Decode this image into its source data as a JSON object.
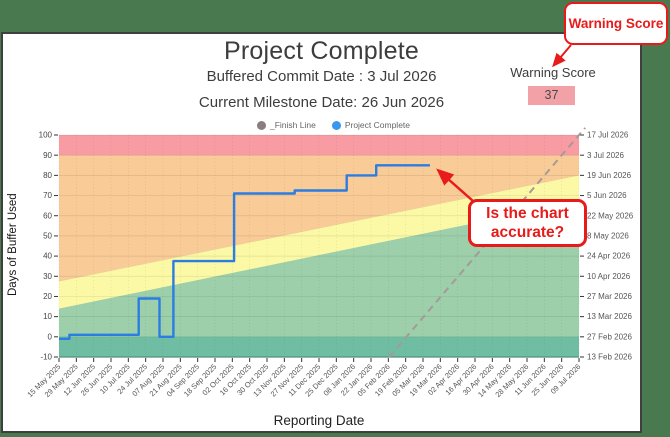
{
  "page": {
    "background_color": "#497a4f"
  },
  "header": {
    "title": "Project Complete",
    "subtitle1": "Buffered Commit Date : 3 Jul 2026",
    "subtitle2": "Current Milestone Date: 26 Jun 2026",
    "warning_score_label": "Warning Score",
    "warning_score_value": "37",
    "warning_score_bg": "#f2a1a7"
  },
  "legend": [
    {
      "label": "_Finish Line",
      "color": "#8b7e7e"
    },
    {
      "label": "Project Complete",
      "color": "#3a97f0"
    }
  ],
  "callouts": {
    "warning": {
      "text": "Warning Score"
    },
    "accuracy": {
      "line1": "Is the chart",
      "line2": "accurate?"
    }
  },
  "chart_data": {
    "type": "line",
    "title": "Project Complete",
    "xlabel": "Reporting Date",
    "ylabel": "Days of Buffer Used",
    "ylim": [
      -10,
      100
    ],
    "grid": true,
    "legend_position": "top",
    "y_ticks": [
      100,
      90,
      80,
      70,
      60,
      50,
      40,
      30,
      20,
      10,
      0,
      -10
    ],
    "x_tick_labels": [
      "15 May 2025",
      "29 May 2025",
      "12 Jun 2025",
      "26 Jun 2025",
      "10 Jul 2025",
      "24 Jul 2025",
      "07 Aug 2025",
      "21 Aug 2025",
      "04 Sep 2025",
      "18 Sep 2025",
      "02 Oct 2025",
      "16 Oct 2025",
      "30 Oct 2025",
      "13 Nov 2025",
      "27 Nov 2025",
      "11 Dec 2025",
      "25 Dec 2025",
      "08 Jan 2026",
      "22 Jan 2026",
      "05 Feb 2026",
      "19 Feb 2026",
      "05 Mar 2026",
      "19 Mar 2026",
      "02 Apr 2026",
      "16 Apr 2026",
      "30 Apr 2026",
      "14 May 2026",
      "28 May 2026",
      "11 Jun 2026",
      "25 Jun 2026",
      "09 Jul 2026"
    ],
    "right_axis_labels": [
      "17 Jul 2026",
      "3 Jul 2026",
      "19 Jun 2026",
      "5 Jun 2026",
      "22 May 2026",
      "8 May 2026",
      "24 Apr 2026",
      "10 Apr 2026",
      "27 Mar 2026",
      "13 Mar 2026",
      "27 Feb 2026",
      "13 Feb 2026"
    ],
    "series": [
      {
        "name": "_Finish Line",
        "style": "dashed",
        "color": "#a59a97",
        "points": [
          [
            19.05,
            -10
          ],
          [
            30.35,
            103.5
          ]
        ]
      },
      {
        "name": "Project Complete",
        "style": "step",
        "color": "#2a7de2",
        "points": [
          [
            0,
            -1
          ],
          [
            0.6,
            -1
          ],
          [
            0.6,
            1
          ],
          [
            4.6,
            1
          ],
          [
            4.6,
            19
          ],
          [
            5.8,
            19
          ],
          [
            5.8,
            0
          ],
          [
            6.6,
            0
          ],
          [
            6.6,
            37.5
          ],
          [
            10.1,
            37.5
          ],
          [
            10.1,
            71
          ],
          [
            13.6,
            71
          ],
          [
            13.6,
            72.5
          ],
          [
            16.6,
            72.5
          ],
          [
            16.6,
            80
          ],
          [
            18.3,
            80
          ],
          [
            18.3,
            85
          ],
          [
            21.4,
            85
          ]
        ]
      }
    ],
    "zones": {
      "green": {
        "color": "#9ccfaa"
      },
      "teal": {
        "from": 0,
        "to": -10,
        "color": "#6fbda2"
      },
      "yellow": {
        "low_start": 14,
        "low_end": 67,
        "high_start": 27.5,
        "high_end": 80,
        "color": "#fbf9a5"
      },
      "orange": {
        "low_start": 27.5,
        "low_end": 80,
        "top": 90,
        "color": "#f9cb96"
      },
      "red": {
        "from": 90,
        "to": 100,
        "color": "#f89ba3"
      }
    }
  }
}
